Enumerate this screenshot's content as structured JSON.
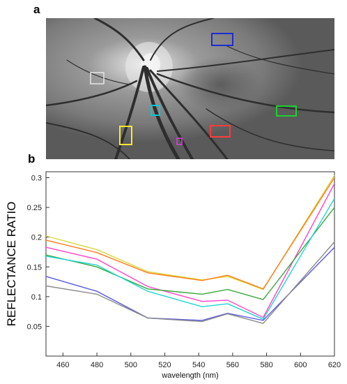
{
  "panels": {
    "a": "a",
    "b": "b"
  },
  "fundus": {
    "rois": [
      {
        "name": "blue",
        "color": "#1f2bd1"
      },
      {
        "name": "gray",
        "color": "#e6e6e6"
      },
      {
        "name": "cyan",
        "color": "#00c9d6"
      },
      {
        "name": "green",
        "color": "#1fcf2f"
      },
      {
        "name": "yellow",
        "color": "#ffe832"
      },
      {
        "name": "red",
        "color": "#ff3b3b"
      },
      {
        "name": "magenta",
        "color": "#e23ce6"
      }
    ]
  },
  "chart_data": {
    "type": "line",
    "xlabel": "wavelength (nm)",
    "ylabel": "REFLECTANCE RATIO",
    "xlim": [
      450,
      620
    ],
    "ylim": [
      0,
      0.31
    ],
    "xticks": [
      460,
      480,
      500,
      520,
      540,
      560,
      580,
      600,
      620
    ],
    "yticks": [
      0.05,
      0.1,
      0.15,
      0.2,
      0.25,
      0.3
    ],
    "ytick_labels": [
      "0.05",
      "0.1",
      "0.15",
      "0.2",
      "0.25",
      "0.3"
    ],
    "x": [
      450,
      480,
      510,
      542,
      557,
      578,
      620
    ],
    "series": [
      {
        "color": "#d8d83a",
        "values": [
          0.202,
          0.179,
          0.142,
          0.128,
          0.134,
          0.112,
          0.304
        ]
      },
      {
        "color": "#ff7a1a",
        "values": [
          0.195,
          0.174,
          0.14,
          0.127,
          0.136,
          0.113,
          0.3
        ]
      },
      {
        "color": "#ff44cc",
        "values": [
          0.183,
          0.163,
          0.117,
          0.092,
          0.094,
          0.065,
          0.29
        ]
      },
      {
        "color": "#3aa83a",
        "values": [
          0.17,
          0.15,
          0.113,
          0.104,
          0.112,
          0.095,
          0.25
        ]
      },
      {
        "color": "#22d4d4",
        "values": [
          0.168,
          0.153,
          0.109,
          0.083,
          0.088,
          0.062,
          0.265
        ]
      },
      {
        "color": "#5a5ae0",
        "values": [
          0.134,
          0.109,
          0.064,
          0.06,
          0.072,
          0.06,
          0.183
        ]
      },
      {
        "color": "#8a8a8a",
        "values": [
          0.118,
          0.104,
          0.064,
          0.058,
          0.071,
          0.055,
          0.192
        ]
      }
    ]
  }
}
